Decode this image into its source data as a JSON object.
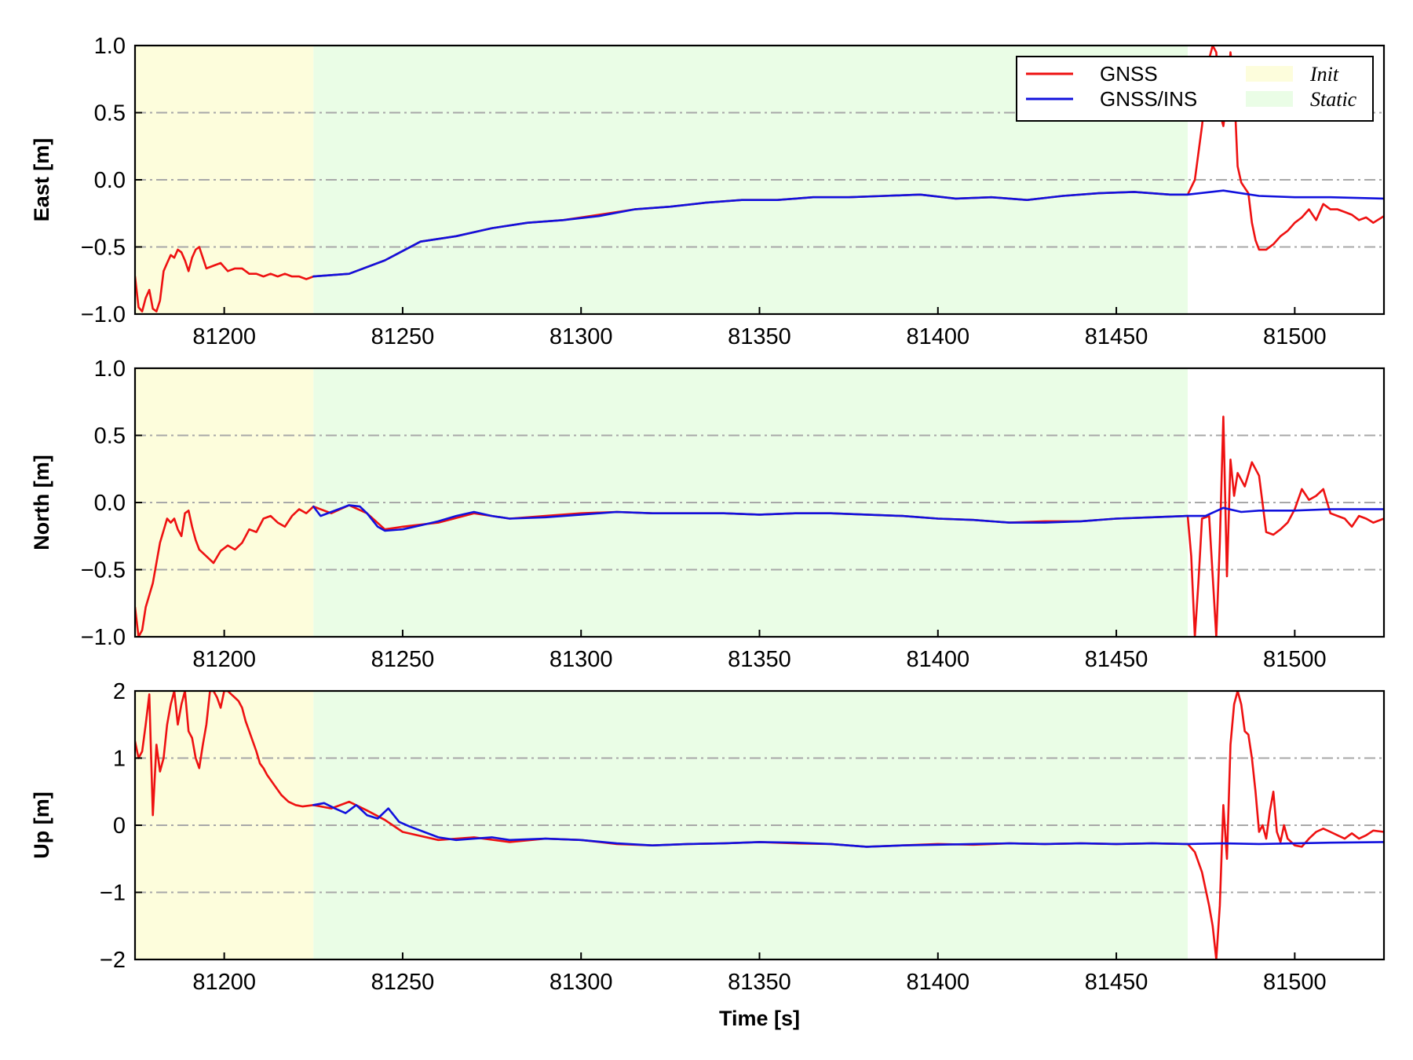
{
  "colors": {
    "gnss": "#ee1111",
    "gnss_ins": "#1111dd",
    "init_region": "#fdfddc",
    "static_region": "#eafde6",
    "grid": "#a8a8a8"
  },
  "chart_data": [
    {
      "type": "line",
      "ylabel": "East [m]",
      "xlim": [
        81175,
        81525
      ],
      "ylim": [
        -1.0,
        1.0
      ],
      "xticks": [
        81200,
        81250,
        81300,
        81350,
        81400,
        81450,
        81500
      ],
      "xtick_labels": [
        "81200",
        "81250",
        "81300",
        "81350",
        "81400",
        "81450",
        "81500"
      ],
      "yticks": [
        -1.0,
        -0.5,
        0.0,
        0.5,
        1.0
      ],
      "ytick_labels": [
        "−1.0",
        "−0.5",
        "0.0",
        "0.5",
        "1.0"
      ],
      "grid": "horizontal dash-dot",
      "legend_position": "top-right",
      "legend": [
        {
          "label": "GNSS",
          "kind": "line",
          "color_key": "gnss"
        },
        {
          "label": "GNSS/INS",
          "kind": "line",
          "color_key": "gnss_ins"
        },
        {
          "label": "Init",
          "kind": "patch",
          "color_key": "init_region"
        },
        {
          "label": "Static",
          "kind": "patch",
          "color_key": "static_region"
        }
      ],
      "regions": [
        {
          "name": "Init",
          "x": [
            81175,
            81225
          ]
        },
        {
          "name": "Static",
          "x": [
            81225,
            81470
          ]
        }
      ],
      "series": [
        {
          "name": "GNSS",
          "x": [
            81175,
            81176,
            81177,
            81178,
            81179,
            81180,
            81181,
            81182,
            81183,
            81184,
            81185,
            81186,
            81187,
            81188,
            81189,
            81190,
            81191,
            81192,
            81193,
            81195,
            81197,
            81199,
            81201,
            81203,
            81205,
            81207,
            81209,
            81211,
            81213,
            81215,
            81217,
            81219,
            81221,
            81223,
            81225,
            81235,
            81245,
            81255,
            81265,
            81275,
            81285,
            81295,
            81305,
            81315,
            81325,
            81335,
            81345,
            81355,
            81365,
            81375,
            81385,
            81395,
            81405,
            81415,
            81425,
            81435,
            81445,
            81455,
            81465,
            81470,
            81472,
            81474,
            81476,
            81477,
            81478,
            81479,
            81480,
            81481,
            81482,
            81483,
            81484,
            81485,
            81486,
            81487,
            81488,
            81489,
            81490,
            81492,
            81494,
            81496,
            81498,
            81500,
            81502,
            81504,
            81506,
            81508,
            81510,
            81512,
            81514,
            81516,
            81518,
            81520,
            81522,
            81525
          ],
          "y": [
            -0.72,
            -0.95,
            -0.98,
            -0.88,
            -0.82,
            -0.96,
            -0.98,
            -0.9,
            -0.68,
            -0.62,
            -0.56,
            -0.58,
            -0.52,
            -0.54,
            -0.6,
            -0.68,
            -0.58,
            -0.52,
            -0.5,
            -0.66,
            -0.64,
            -0.62,
            -0.68,
            -0.66,
            -0.66,
            -0.7,
            -0.7,
            -0.72,
            -0.7,
            -0.72,
            -0.7,
            -0.72,
            -0.72,
            -0.74,
            -0.72,
            -0.7,
            -0.6,
            -0.46,
            -0.42,
            -0.36,
            -0.32,
            -0.3,
            -0.26,
            -0.22,
            -0.2,
            -0.17,
            -0.15,
            -0.15,
            -0.13,
            -0.13,
            -0.12,
            -0.11,
            -0.14,
            -0.13,
            -0.15,
            -0.12,
            -0.1,
            -0.09,
            -0.11,
            -0.11,
            0.0,
            0.4,
            0.9,
            1.0,
            0.95,
            0.5,
            0.4,
            0.6,
            0.95,
            0.7,
            0.1,
            -0.02,
            -0.06,
            -0.1,
            -0.32,
            -0.45,
            -0.52,
            -0.52,
            -0.48,
            -0.42,
            -0.38,
            -0.32,
            -0.28,
            -0.22,
            -0.3,
            -0.18,
            -0.22,
            -0.22,
            -0.24,
            -0.26,
            -0.3,
            -0.28,
            -0.32,
            -0.27
          ]
        },
        {
          "name": "GNSS/INS",
          "x": [
            81225,
            81235,
            81245,
            81255,
            81265,
            81275,
            81285,
            81295,
            81305,
            81315,
            81325,
            81335,
            81345,
            81355,
            81365,
            81375,
            81385,
            81395,
            81405,
            81415,
            81425,
            81435,
            81445,
            81455,
            81465,
            81470,
            81480,
            81490,
            81500,
            81510,
            81525
          ],
          "y": [
            -0.72,
            -0.7,
            -0.6,
            -0.46,
            -0.42,
            -0.36,
            -0.32,
            -0.3,
            -0.27,
            -0.22,
            -0.2,
            -0.17,
            -0.15,
            -0.15,
            -0.13,
            -0.13,
            -0.12,
            -0.11,
            -0.14,
            -0.13,
            -0.15,
            -0.12,
            -0.1,
            -0.09,
            -0.11,
            -0.11,
            -0.08,
            -0.12,
            -0.13,
            -0.13,
            -0.14
          ]
        }
      ]
    },
    {
      "type": "line",
      "ylabel": "North [m]",
      "xlim": [
        81175,
        81525
      ],
      "ylim": [
        -1.0,
        1.0
      ],
      "xticks": [
        81200,
        81250,
        81300,
        81350,
        81400,
        81450,
        81500
      ],
      "xtick_labels": [
        "81200",
        "81250",
        "81300",
        "81350",
        "81400",
        "81450",
        "81500"
      ],
      "yticks": [
        -1.0,
        -0.5,
        0.0,
        0.5,
        1.0
      ],
      "ytick_labels": [
        "−1.0",
        "−0.5",
        "0.0",
        "0.5",
        "1.0"
      ],
      "grid": "horizontal dash-dot",
      "regions": [
        {
          "name": "Init",
          "x": [
            81175,
            81225
          ]
        },
        {
          "name": "Static",
          "x": [
            81225,
            81470
          ]
        }
      ],
      "series": [
        {
          "name": "GNSS",
          "x": [
            81175,
            81176,
            81177,
            81178,
            81180,
            81182,
            81184,
            81185,
            81186,
            81187,
            81188,
            81189,
            81190,
            81191,
            81192,
            81193,
            81195,
            81197,
            81199,
            81201,
            81203,
            81205,
            81207,
            81209,
            81211,
            81213,
            81215,
            81217,
            81219,
            81221,
            81223,
            81225,
            81230,
            81235,
            81240,
            81245,
            81250,
            81260,
            81270,
            81280,
            81290,
            81300,
            81310,
            81320,
            81330,
            81340,
            81350,
            81360,
            81370,
            81380,
            81390,
            81400,
            81410,
            81420,
            81430,
            81440,
            81450,
            81460,
            81470,
            81471,
            81472,
            81473,
            81474,
            81476,
            81478,
            81479,
            81480,
            81481,
            81482,
            81483,
            81484,
            81486,
            81488,
            81490,
            81492,
            81494,
            81496,
            81498,
            81500,
            81502,
            81504,
            81506,
            81508,
            81510,
            81512,
            81514,
            81516,
            81518,
            81520,
            81522,
            81525
          ],
          "y": [
            -0.78,
            -1.0,
            -0.95,
            -0.78,
            -0.6,
            -0.3,
            -0.12,
            -0.15,
            -0.12,
            -0.2,
            -0.25,
            -0.08,
            -0.06,
            -0.18,
            -0.28,
            -0.35,
            -0.4,
            -0.45,
            -0.36,
            -0.32,
            -0.35,
            -0.3,
            -0.2,
            -0.22,
            -0.12,
            -0.1,
            -0.15,
            -0.18,
            -0.1,
            -0.05,
            -0.08,
            -0.03,
            -0.08,
            -0.02,
            -0.08,
            -0.2,
            -0.18,
            -0.15,
            -0.08,
            -0.12,
            -0.1,
            -0.08,
            -0.07,
            -0.08,
            -0.08,
            -0.08,
            -0.09,
            -0.08,
            -0.08,
            -0.09,
            -0.1,
            -0.12,
            -0.13,
            -0.15,
            -0.14,
            -0.14,
            -0.12,
            -0.11,
            -0.1,
            -0.4,
            -1.0,
            -0.6,
            -0.12,
            -0.1,
            -1.0,
            -0.3,
            0.64,
            -0.55,
            0.32,
            0.05,
            0.22,
            0.12,
            0.3,
            0.2,
            -0.22,
            -0.24,
            -0.2,
            -0.15,
            -0.05,
            0.1,
            0.02,
            0.05,
            0.1,
            -0.08,
            -0.1,
            -0.12,
            -0.18,
            -0.1,
            -0.12,
            -0.15,
            -0.12
          ]
        },
        {
          "name": "GNSS/INS",
          "x": [
            81225,
            81227,
            81230,
            81233,
            81235,
            81238,
            81240,
            81243,
            81245,
            81250,
            81255,
            81260,
            81265,
            81270,
            81275,
            81280,
            81290,
            81300,
            81310,
            81320,
            81330,
            81340,
            81350,
            81360,
            81370,
            81380,
            81390,
            81400,
            81410,
            81420,
            81430,
            81440,
            81450,
            81460,
            81470,
            81475,
            81480,
            81485,
            81490,
            81500,
            81510,
            81525
          ],
          "y": [
            -0.03,
            -0.1,
            -0.07,
            -0.04,
            -0.02,
            -0.03,
            -0.08,
            -0.18,
            -0.21,
            -0.2,
            -0.17,
            -0.14,
            -0.1,
            -0.07,
            -0.1,
            -0.12,
            -0.11,
            -0.09,
            -0.07,
            -0.08,
            -0.08,
            -0.08,
            -0.09,
            -0.08,
            -0.08,
            -0.09,
            -0.1,
            -0.12,
            -0.13,
            -0.15,
            -0.15,
            -0.14,
            -0.12,
            -0.11,
            -0.1,
            -0.1,
            -0.04,
            -0.07,
            -0.06,
            -0.06,
            -0.05,
            -0.05
          ]
        }
      ]
    },
    {
      "type": "line",
      "ylabel": "Up [m]",
      "xlabel": "Time [s]",
      "xlim": [
        81175,
        81525
      ],
      "ylim": [
        -2,
        2
      ],
      "xticks": [
        81200,
        81250,
        81300,
        81350,
        81400,
        81450,
        81500
      ],
      "xtick_labels": [
        "81200",
        "81250",
        "81300",
        "81350",
        "81400",
        "81450",
        "81500"
      ],
      "yticks": [
        -2,
        -1,
        0,
        1,
        2
      ],
      "ytick_labels": [
        "−2",
        "−1",
        "0",
        "1",
        "2"
      ],
      "grid": "horizontal dash-dot",
      "regions": [
        {
          "name": "Init",
          "x": [
            81175,
            81225
          ]
        },
        {
          "name": "Static",
          "x": [
            81225,
            81470
          ]
        }
      ],
      "series": [
        {
          "name": "GNSS",
          "x": [
            81175,
            81176,
            81177,
            81178,
            81179,
            81180,
            81181,
            81182,
            81183,
            81184,
            81185,
            81186,
            81187,
            81188,
            81189,
            81190,
            81191,
            81192,
            81193,
            81194,
            81195,
            81196,
            81197,
            81198,
            81199,
            81200,
            81201,
            81202,
            81203,
            81204,
            81205,
            81206,
            81207,
            81208,
            81209,
            81210,
            81211,
            81212,
            81214,
            81216,
            81218,
            81220,
            81222,
            81225,
            81230,
            81235,
            81240,
            81245,
            81250,
            81260,
            81270,
            81280,
            81290,
            81300,
            81310,
            81320,
            81330,
            81340,
            81350,
            81360,
            81370,
            81380,
            81390,
            81400,
            81410,
            81420,
            81430,
            81440,
            81450,
            81460,
            81470,
            81472,
            81474,
            81476,
            81477,
            81478,
            81479,
            81480,
            81481,
            81482,
            81483,
            81484,
            81485,
            81486,
            81487,
            81488,
            81489,
            81490,
            81491,
            81492,
            81493,
            81494,
            81495,
            81496,
            81497,
            81498,
            81500,
            81502,
            81504,
            81506,
            81508,
            81510,
            81512,
            81514,
            81516,
            81518,
            81520,
            81522,
            81525
          ],
          "y": [
            1.25,
            1.0,
            1.1,
            1.5,
            1.95,
            0.15,
            1.2,
            0.8,
            1.0,
            1.5,
            1.8,
            2.0,
            1.5,
            1.8,
            2.0,
            1.4,
            1.3,
            1.0,
            0.85,
            1.2,
            1.5,
            2.0,
            2.0,
            1.9,
            1.75,
            2.0,
            2.0,
            1.95,
            1.9,
            1.85,
            1.75,
            1.55,
            1.4,
            1.25,
            1.1,
            0.92,
            0.85,
            0.75,
            0.6,
            0.45,
            0.35,
            0.3,
            0.28,
            0.3,
            0.25,
            0.35,
            0.22,
            0.08,
            -0.1,
            -0.22,
            -0.18,
            -0.25,
            -0.2,
            -0.22,
            -0.28,
            -0.3,
            -0.28,
            -0.27,
            -0.25,
            -0.27,
            -0.28,
            -0.32,
            -0.3,
            -0.28,
            -0.29,
            -0.27,
            -0.28,
            -0.27,
            -0.28,
            -0.27,
            -0.28,
            -0.4,
            -0.7,
            -1.2,
            -1.5,
            -2.0,
            -1.2,
            0.3,
            -0.5,
            1.2,
            1.8,
            2.0,
            1.8,
            1.4,
            1.35,
            1.0,
            0.5,
            -0.1,
            0.0,
            -0.2,
            0.2,
            0.5,
            -0.1,
            -0.25,
            0.0,
            -0.2,
            -0.3,
            -0.32,
            -0.2,
            -0.1,
            -0.05,
            -0.1,
            -0.15,
            -0.2,
            -0.12,
            -0.2,
            -0.15,
            -0.08,
            -0.1
          ]
        },
        {
          "name": "GNSS/INS",
          "x": [
            81225,
            81228,
            81231,
            81234,
            81237,
            81240,
            81243,
            81246,
            81249,
            81252,
            81256,
            81260,
            81265,
            81270,
            81275,
            81280,
            81290,
            81300,
            81310,
            81320,
            81330,
            81340,
            81350,
            81360,
            81370,
            81380,
            81390,
            81400,
            81410,
            81420,
            81430,
            81440,
            81450,
            81460,
            81470,
            81480,
            81490,
            81500,
            81510,
            81525
          ],
          "y": [
            0.3,
            0.33,
            0.25,
            0.18,
            0.3,
            0.15,
            0.1,
            0.25,
            0.05,
            -0.02,
            -0.1,
            -0.18,
            -0.22,
            -0.2,
            -0.18,
            -0.22,
            -0.2,
            -0.22,
            -0.27,
            -0.3,
            -0.28,
            -0.27,
            -0.25,
            -0.26,
            -0.28,
            -0.32,
            -0.3,
            -0.29,
            -0.28,
            -0.27,
            -0.28,
            -0.27,
            -0.28,
            -0.27,
            -0.28,
            -0.27,
            -0.28,
            -0.27,
            -0.26,
            -0.25
          ]
        }
      ]
    }
  ]
}
